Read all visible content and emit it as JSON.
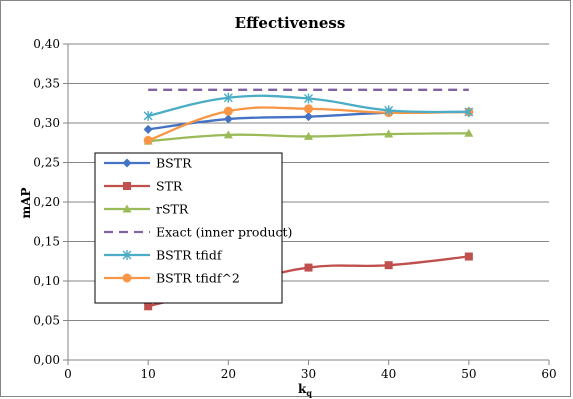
{
  "chart_data": {
    "type": "line",
    "title": "Effectiveness",
    "xlabel": "k",
    "xlabel_subscript": "q",
    "ylabel": "mAP",
    "xlim": [
      0,
      60
    ],
    "ylim": [
      0,
      0.4
    ],
    "x_ticks": [
      "0",
      "10",
      "20",
      "30",
      "40",
      "50",
      "60"
    ],
    "y_ticks": [
      "0,00",
      "0,05",
      "0,10",
      "0,15",
      "0,20",
      "0,25",
      "0,30",
      "0,35",
      "0,40"
    ],
    "x_tick_values": [
      0,
      10,
      20,
      30,
      40,
      50,
      60
    ],
    "y_tick_values": [
      0,
      0.05,
      0.1,
      0.15,
      0.2,
      0.25,
      0.3,
      0.35,
      0.4
    ],
    "grid": "horizontal",
    "legend_position": "left-middle",
    "series": [
      {
        "name": "BSTR",
        "color": "#4472C4",
        "marker": "diamond",
        "dashed": false,
        "x": [
          10,
          20,
          30,
          40,
          50
        ],
        "values": [
          0.292,
          0.305,
          0.308,
          0.313,
          0.314
        ]
      },
      {
        "name": "STR",
        "color": "#C0504D",
        "marker": "square",
        "dashed": false,
        "x": [
          10,
          20,
          30,
          40,
          50
        ],
        "values": [
          0.068,
          0.093,
          0.117,
          0.12,
          0.131
        ]
      },
      {
        "name": "rSTR",
        "color": "#9BBB59",
        "marker": "triangle",
        "dashed": false,
        "x": [
          10,
          20,
          30,
          40,
          50
        ],
        "values": [
          0.277,
          0.285,
          0.283,
          0.286,
          0.287
        ]
      },
      {
        "name": "Exact (inner product)",
        "color": "#8064A2",
        "marker": "none",
        "dashed": true,
        "x": [
          10,
          20,
          30,
          40,
          50
        ],
        "values": [
          0.342,
          0.342,
          0.342,
          0.342,
          0.342
        ]
      },
      {
        "name": "BSTR tfidf",
        "color": "#4BACC6",
        "marker": "asterisk",
        "dashed": false,
        "x": [
          10,
          20,
          30,
          40,
          50
        ],
        "values": [
          0.309,
          0.332,
          0.331,
          0.316,
          0.314
        ]
      },
      {
        "name": "BSTR tfidf^2",
        "color": "#F79646",
        "marker": "circle",
        "dashed": false,
        "x": [
          10,
          20,
          30,
          40,
          50
        ],
        "values": [
          0.278,
          0.315,
          0.318,
          0.313,
          0.314
        ]
      }
    ]
  }
}
